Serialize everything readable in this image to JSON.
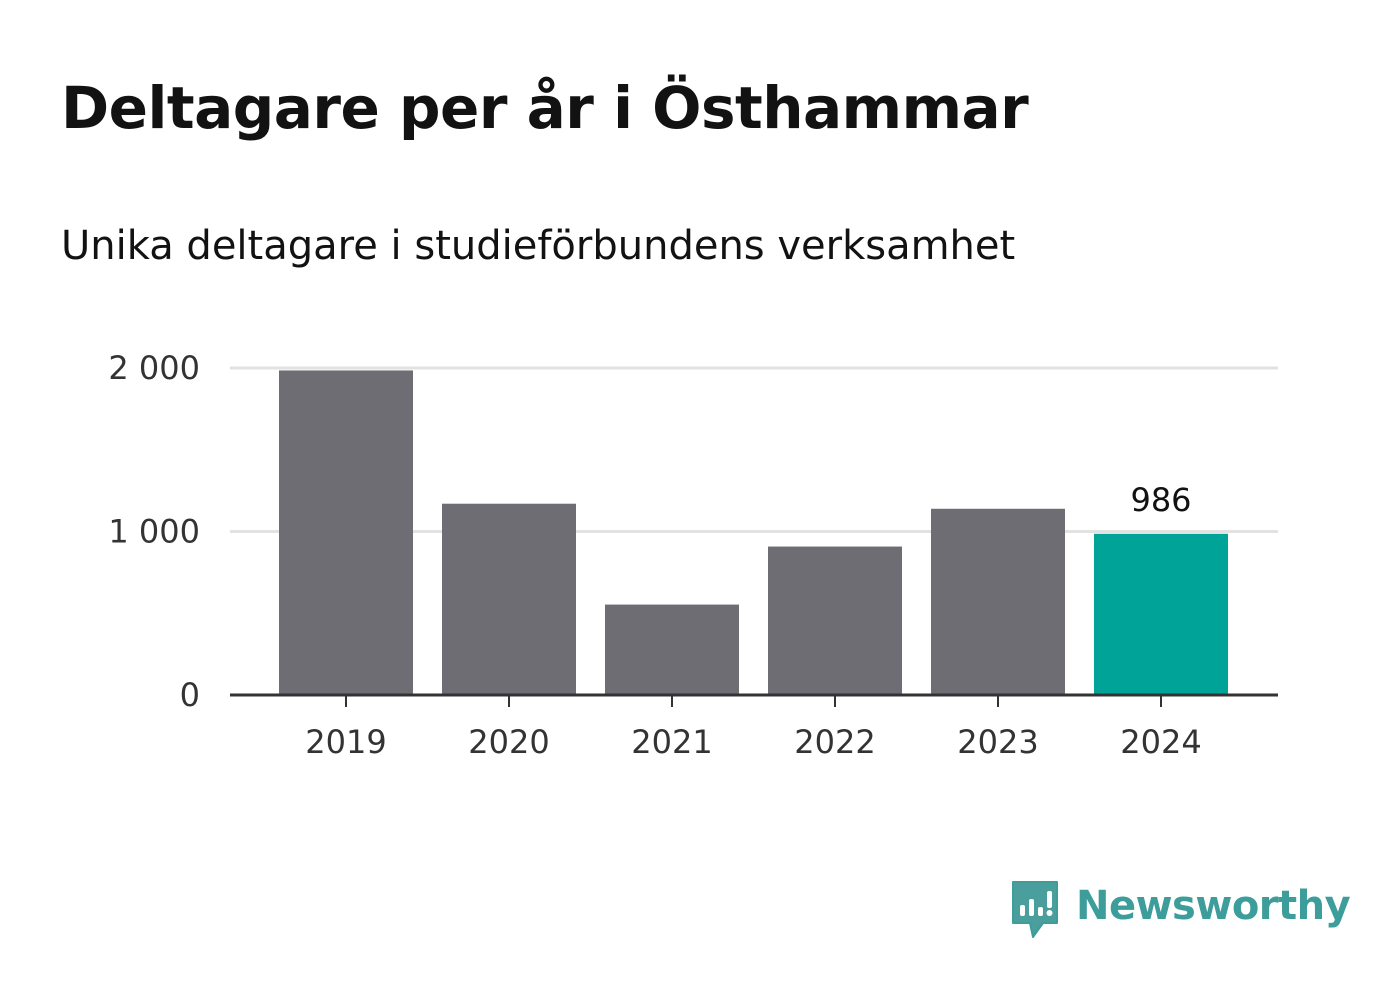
{
  "title": "Deltagare per år i Östhammar",
  "subtitle": "Unika deltagare i studieförbundens verksamhet",
  "logo": {
    "text": "Newsworthy",
    "icon": "newsworthy-logo-icon",
    "color": "#3c9d9a"
  },
  "chart_data": {
    "type": "bar",
    "categories": [
      "2019",
      "2020",
      "2021",
      "2022",
      "2023",
      "2024"
    ],
    "values": [
      1985,
      1170,
      553,
      908,
      1139,
      986
    ],
    "ylim": [
      0,
      2000
    ],
    "yticks": [
      0,
      1000,
      2000
    ],
    "ytick_labels": [
      "0",
      "1 000",
      "2 000"
    ],
    "value_label": {
      "index": 5,
      "text": "986"
    },
    "colors": {
      "default_bar": "#6e6d73",
      "highlight_bar": "#00a398",
      "gridline": "#e2e2e2",
      "axis": "#333333"
    },
    "highlight_index": 5,
    "grid": true,
    "xlabel": "",
    "ylabel": ""
  }
}
